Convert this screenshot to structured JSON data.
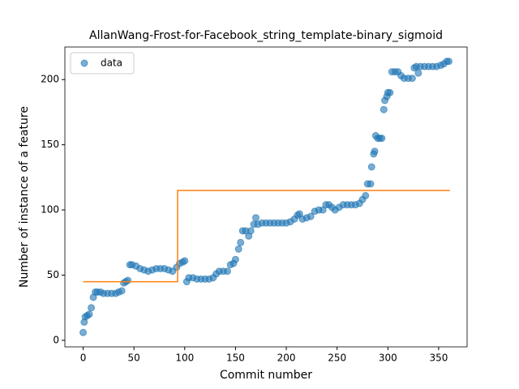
{
  "chart_data": {
    "type": "scatter",
    "title": "AllanWang-Frost-for-Facebook_string_template-binary_sigmoid",
    "x_label": "Commit number",
    "y_label": "Number of instance of a feature",
    "xlim": [
      -18,
      378
    ],
    "ylim": [
      -5,
      225
    ],
    "xticks": [
      0,
      50,
      100,
      150,
      200,
      250,
      300,
      350
    ],
    "yticks": [
      0,
      50,
      100,
      150,
      200
    ],
    "legend": "upper left",
    "series": [
      {
        "name": "data",
        "color": "#1f77b4",
        "x": [
          0,
          1,
          2,
          4,
          6,
          8,
          10,
          12,
          14,
          17,
          20,
          24,
          28,
          32,
          35,
          38,
          40,
          42,
          44,
          46,
          48,
          52,
          56,
          60,
          64,
          68,
          72,
          76,
          80,
          84,
          88,
          92,
          95,
          98,
          100,
          102,
          104,
          108,
          112,
          116,
          120,
          124,
          128,
          131,
          134,
          138,
          142,
          145,
          148,
          150,
          153,
          155,
          157,
          160,
          163,
          165,
          168,
          170,
          172,
          176,
          180,
          184,
          188,
          192,
          196,
          200,
          204,
          208,
          211,
          213,
          216,
          220,
          224,
          228,
          232,
          236,
          239,
          242,
          245,
          248,
          252,
          256,
          260,
          264,
          268,
          272,
          275,
          278,
          280,
          283,
          284,
          286,
          287,
          288,
          290,
          292,
          294,
          296,
          297,
          299,
          300,
          302,
          304,
          307,
          310,
          313,
          316,
          320,
          324,
          326,
          328,
          330,
          332,
          336,
          340,
          344,
          348,
          352,
          355,
          358,
          360
        ],
        "values": [
          6,
          14,
          18,
          19,
          20,
          25,
          33,
          37,
          37,
          37,
          36,
          36,
          36,
          36,
          37,
          38,
          44,
          45,
          46,
          58,
          58,
          57,
          55,
          54,
          53,
          54,
          55,
          55,
          55,
          54,
          53,
          56,
          59,
          60,
          61,
          45,
          48,
          48,
          47,
          47,
          47,
          47,
          48,
          51,
          53,
          53,
          53,
          58,
          59,
          62,
          70,
          75,
          84,
          84,
          80,
          84,
          89,
          94,
          89,
          90,
          90,
          90,
          90,
          90,
          90,
          90,
          91,
          93,
          96,
          97,
          93,
          94,
          95,
          99,
          100,
          100,
          104,
          104,
          102,
          100,
          102,
          104,
          104,
          104,
          104,
          105,
          108,
          111,
          120,
          120,
          133,
          143,
          145,
          157,
          155,
          155,
          155,
          177,
          184,
          187,
          190,
          190,
          206,
          206,
          206,
          203,
          201,
          201,
          201,
          209,
          210,
          205,
          210,
          210,
          210,
          210,
          210,
          211,
          212,
          214,
          214
        ]
      },
      {
        "type": "line",
        "color": "#ff7f0e",
        "x": [
          0,
          93,
          93,
          361
        ],
        "values": [
          45,
          45,
          115,
          115
        ]
      }
    ]
  }
}
